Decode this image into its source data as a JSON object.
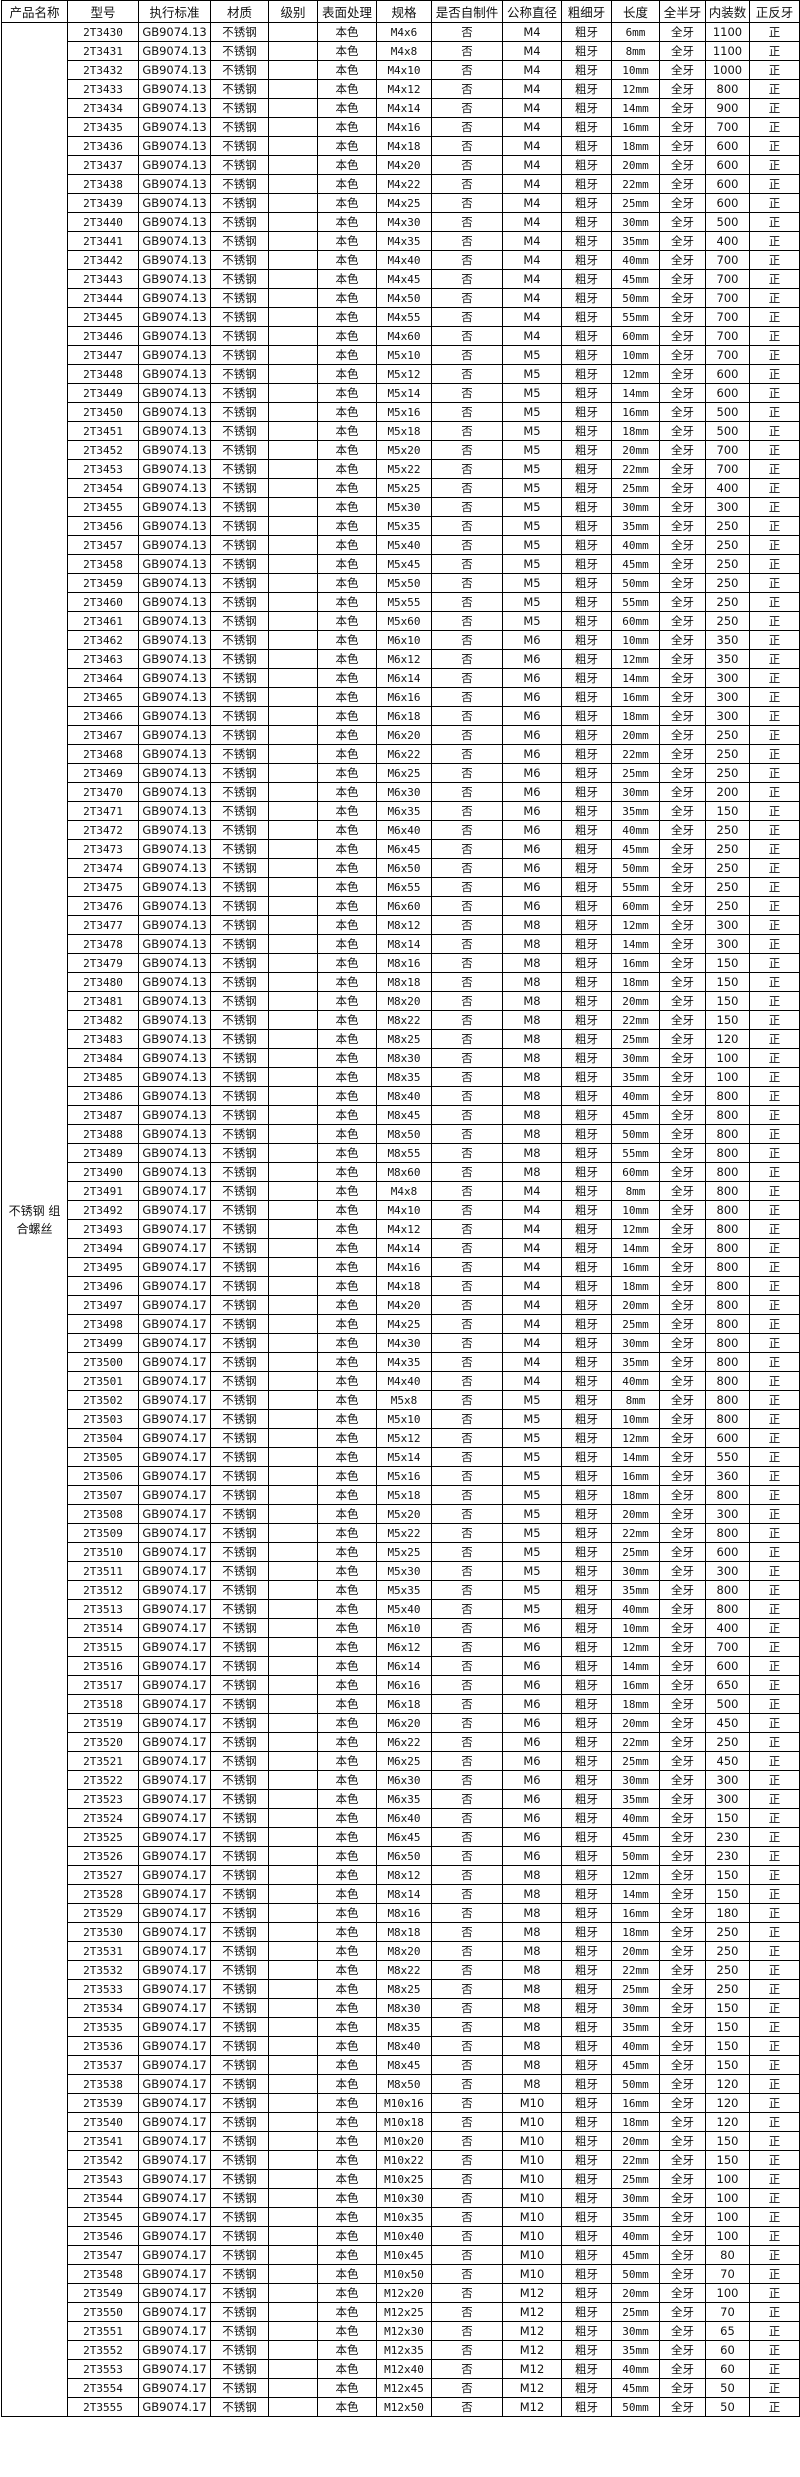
{
  "table": {
    "headers": [
      "产品名称",
      "型号",
      "执行标准",
      "材质",
      "级别",
      "表面处理",
      "规格",
      "是否自制件",
      "公称直径",
      "粗细牙",
      "长度",
      "全半牙",
      "内装数",
      "正反牙"
    ],
    "product_name": "不锈钢 组合螺丝",
    "defaults": {
      "material": "不锈钢",
      "grade": "",
      "surface": "本色",
      "self_made": "否",
      "thread": "粗牙",
      "full_half": "全牙",
      "direction": "正"
    },
    "rows": [
      [
        "2T3430",
        "GB9074.13",
        "M4x6",
        "M4",
        "6mm",
        "1100"
      ],
      [
        "2T3431",
        "GB9074.13",
        "M4x8",
        "M4",
        "8mm",
        "1100"
      ],
      [
        "2T3432",
        "GB9074.13",
        "M4x10",
        "M4",
        "10mm",
        "1000"
      ],
      [
        "2T3433",
        "GB9074.13",
        "M4x12",
        "M4",
        "12mm",
        "800"
      ],
      [
        "2T3434",
        "GB9074.13",
        "M4x14",
        "M4",
        "14mm",
        "900"
      ],
      [
        "2T3435",
        "GB9074.13",
        "M4x16",
        "M4",
        "16mm",
        "700"
      ],
      [
        "2T3436",
        "GB9074.13",
        "M4x18",
        "M4",
        "18mm",
        "600"
      ],
      [
        "2T3437",
        "GB9074.13",
        "M4x20",
        "M4",
        "20mm",
        "600"
      ],
      [
        "2T3438",
        "GB9074.13",
        "M4x22",
        "M4",
        "22mm",
        "600"
      ],
      [
        "2T3439",
        "GB9074.13",
        "M4x25",
        "M4",
        "25mm",
        "600"
      ],
      [
        "2T3440",
        "GB9074.13",
        "M4x30",
        "M4",
        "30mm",
        "500"
      ],
      [
        "2T3441",
        "GB9074.13",
        "M4x35",
        "M4",
        "35mm",
        "400"
      ],
      [
        "2T3442",
        "GB9074.13",
        "M4x40",
        "M4",
        "40mm",
        "700"
      ],
      [
        "2T3443",
        "GB9074.13",
        "M4x45",
        "M4",
        "45mm",
        "700"
      ],
      [
        "2T3444",
        "GB9074.13",
        "M4x50",
        "M4",
        "50mm",
        "700"
      ],
      [
        "2T3445",
        "GB9074.13",
        "M4x55",
        "M4",
        "55mm",
        "700"
      ],
      [
        "2T3446",
        "GB9074.13",
        "M4x60",
        "M4",
        "60mm",
        "700"
      ],
      [
        "2T3447",
        "GB9074.13",
        "M5x10",
        "M5",
        "10mm",
        "700"
      ],
      [
        "2T3448",
        "GB9074.13",
        "M5x12",
        "M5",
        "12mm",
        "600"
      ],
      [
        "2T3449",
        "GB9074.13",
        "M5x14",
        "M5",
        "14mm",
        "600"
      ],
      [
        "2T3450",
        "GB9074.13",
        "M5x16",
        "M5",
        "16mm",
        "500"
      ],
      [
        "2T3451",
        "GB9074.13",
        "M5x18",
        "M5",
        "18mm",
        "500"
      ],
      [
        "2T3452",
        "GB9074.13",
        "M5x20",
        "M5",
        "20mm",
        "700"
      ],
      [
        "2T3453",
        "GB9074.13",
        "M5x22",
        "M5",
        "22mm",
        "700"
      ],
      [
        "2T3454",
        "GB9074.13",
        "M5x25",
        "M5",
        "25mm",
        "400"
      ],
      [
        "2T3455",
        "GB9074.13",
        "M5x30",
        "M5",
        "30mm",
        "300"
      ],
      [
        "2T3456",
        "GB9074.13",
        "M5x35",
        "M5",
        "35mm",
        "250"
      ],
      [
        "2T3457",
        "GB9074.13",
        "M5x40",
        "M5",
        "40mm",
        "250"
      ],
      [
        "2T3458",
        "GB9074.13",
        "M5x45",
        "M5",
        "45mm",
        "250"
      ],
      [
        "2T3459",
        "GB9074.13",
        "M5x50",
        "M5",
        "50mm",
        "250"
      ],
      [
        "2T3460",
        "GB9074.13",
        "M5x55",
        "M5",
        "55mm",
        "250"
      ],
      [
        "2T3461",
        "GB9074.13",
        "M5x60",
        "M5",
        "60mm",
        "250"
      ],
      [
        "2T3462",
        "GB9074.13",
        "M6x10",
        "M6",
        "10mm",
        "350"
      ],
      [
        "2T3463",
        "GB9074.13",
        "M6x12",
        "M6",
        "12mm",
        "350"
      ],
      [
        "2T3464",
        "GB9074.13",
        "M6x14",
        "M6",
        "14mm",
        "300"
      ],
      [
        "2T3465",
        "GB9074.13",
        "M6x16",
        "M6",
        "16mm",
        "300"
      ],
      [
        "2T3466",
        "GB9074.13",
        "M6x18",
        "M6",
        "18mm",
        "300"
      ],
      [
        "2T3467",
        "GB9074.13",
        "M6x20",
        "M6",
        "20mm",
        "250"
      ],
      [
        "2T3468",
        "GB9074.13",
        "M6x22",
        "M6",
        "22mm",
        "250"
      ],
      [
        "2T3469",
        "GB9074.13",
        "M6x25",
        "M6",
        "25mm",
        "250"
      ],
      [
        "2T3470",
        "GB9074.13",
        "M6x30",
        "M6",
        "30mm",
        "200"
      ],
      [
        "2T3471",
        "GB9074.13",
        "M6x35",
        "M6",
        "35mm",
        "150"
      ],
      [
        "2T3472",
        "GB9074.13",
        "M6x40",
        "M6",
        "40mm",
        "250"
      ],
      [
        "2T3473",
        "GB9074.13",
        "M6x45",
        "M6",
        "45mm",
        "250"
      ],
      [
        "2T3474",
        "GB9074.13",
        "M6x50",
        "M6",
        "50mm",
        "250"
      ],
      [
        "2T3475",
        "GB9074.13",
        "M6x55",
        "M6",
        "55mm",
        "250"
      ],
      [
        "2T3476",
        "GB9074.13",
        "M6x60",
        "M6",
        "60mm",
        "250"
      ],
      [
        "2T3477",
        "GB9074.13",
        "M8x12",
        "M8",
        "12mm",
        "300"
      ],
      [
        "2T3478",
        "GB9074.13",
        "M8x14",
        "M8",
        "14mm",
        "300"
      ],
      [
        "2T3479",
        "GB9074.13",
        "M8x16",
        "M8",
        "16mm",
        "150"
      ],
      [
        "2T3480",
        "GB9074.13",
        "M8x18",
        "M8",
        "18mm",
        "150"
      ],
      [
        "2T3481",
        "GB9074.13",
        "M8x20",
        "M8",
        "20mm",
        "150"
      ],
      [
        "2T3482",
        "GB9074.13",
        "M8x22",
        "M8",
        "22mm",
        "150"
      ],
      [
        "2T3483",
        "GB9074.13",
        "M8x25",
        "M8",
        "25mm",
        "120"
      ],
      [
        "2T3484",
        "GB9074.13",
        "M8x30",
        "M8",
        "30mm",
        "100"
      ],
      [
        "2T3485",
        "GB9074.13",
        "M8x35",
        "M8",
        "35mm",
        "100"
      ],
      [
        "2T3486",
        "GB9074.13",
        "M8x40",
        "M8",
        "40mm",
        "800"
      ],
      [
        "2T3487",
        "GB9074.13",
        "M8x45",
        "M8",
        "45mm",
        "800"
      ],
      [
        "2T3488",
        "GB9074.13",
        "M8x50",
        "M8",
        "50mm",
        "800"
      ],
      [
        "2T3489",
        "GB9074.13",
        "M8x55",
        "M8",
        "55mm",
        "800"
      ],
      [
        "2T3490",
        "GB9074.13",
        "M8x60",
        "M8",
        "60mm",
        "800"
      ],
      [
        "2T3491",
        "GB9074.17",
        "M4x8",
        "M4",
        "8mm",
        "800"
      ],
      [
        "2T3492",
        "GB9074.17",
        "M4x10",
        "M4",
        "10mm",
        "800"
      ],
      [
        "2T3493",
        "GB9074.17",
        "M4x12",
        "M4",
        "12mm",
        "800"
      ],
      [
        "2T3494",
        "GB9074.17",
        "M4x14",
        "M4",
        "14mm",
        "800"
      ],
      [
        "2T3495",
        "GB9074.17",
        "M4x16",
        "M4",
        "16mm",
        "800"
      ],
      [
        "2T3496",
        "GB9074.17",
        "M4x18",
        "M4",
        "18mm",
        "800"
      ],
      [
        "2T3497",
        "GB9074.17",
        "M4x20",
        "M4",
        "20mm",
        "800"
      ],
      [
        "2T3498",
        "GB9074.17",
        "M4x25",
        "M4",
        "25mm",
        "800"
      ],
      [
        "2T3499",
        "GB9074.17",
        "M4x30",
        "M4",
        "30mm",
        "800"
      ],
      [
        "2T3500",
        "GB9074.17",
        "M4x35",
        "M4",
        "35mm",
        "800"
      ],
      [
        "2T3501",
        "GB9074.17",
        "M4x40",
        "M4",
        "40mm",
        "800"
      ],
      [
        "2T3502",
        "GB9074.17",
        "M5x8",
        "M5",
        "8mm",
        "800"
      ],
      [
        "2T3503",
        "GB9074.17",
        "M5x10",
        "M5",
        "10mm",
        "800"
      ],
      [
        "2T3504",
        "GB9074.17",
        "M5x12",
        "M5",
        "12mm",
        "600"
      ],
      [
        "2T3505",
        "GB9074.17",
        "M5x14",
        "M5",
        "14mm",
        "550"
      ],
      [
        "2T3506",
        "GB9074.17",
        "M5x16",
        "M5",
        "16mm",
        "360"
      ],
      [
        "2T3507",
        "GB9074.17",
        "M5x18",
        "M5",
        "18mm",
        "800"
      ],
      [
        "2T3508",
        "GB9074.17",
        "M5x20",
        "M5",
        "20mm",
        "300"
      ],
      [
        "2T3509",
        "GB9074.17",
        "M5x22",
        "M5",
        "22mm",
        "800"
      ],
      [
        "2T3510",
        "GB9074.17",
        "M5x25",
        "M5",
        "25mm",
        "600"
      ],
      [
        "2T3511",
        "GB9074.17",
        "M5x30",
        "M5",
        "30mm",
        "300"
      ],
      [
        "2T3512",
        "GB9074.17",
        "M5x35",
        "M5",
        "35mm",
        "800"
      ],
      [
        "2T3513",
        "GB9074.17",
        "M5x40",
        "M5",
        "40mm",
        "800"
      ],
      [
        "2T3514",
        "GB9074.17",
        "M6x10",
        "M6",
        "10mm",
        "400"
      ],
      [
        "2T3515",
        "GB9074.17",
        "M6x12",
        "M6",
        "12mm",
        "700"
      ],
      [
        "2T3516",
        "GB9074.17",
        "M6x14",
        "M6",
        "14mm",
        "600"
      ],
      [
        "2T3517",
        "GB9074.17",
        "M6x16",
        "M6",
        "16mm",
        "650"
      ],
      [
        "2T3518",
        "GB9074.17",
        "M6x18",
        "M6",
        "18mm",
        "500"
      ],
      [
        "2T3519",
        "GB9074.17",
        "M6x20",
        "M6",
        "20mm",
        "450"
      ],
      [
        "2T3520",
        "GB9074.17",
        "M6x22",
        "M6",
        "22mm",
        "250"
      ],
      [
        "2T3521",
        "GB9074.17",
        "M6x25",
        "M6",
        "25mm",
        "450"
      ],
      [
        "2T3522",
        "GB9074.17",
        "M6x30",
        "M6",
        "30mm",
        "300"
      ],
      [
        "2T3523",
        "GB9074.17",
        "M6x35",
        "M6",
        "35mm",
        "300"
      ],
      [
        "2T3524",
        "GB9074.17",
        "M6x40",
        "M6",
        "40mm",
        "150"
      ],
      [
        "2T3525",
        "GB9074.17",
        "M6x45",
        "M6",
        "45mm",
        "230"
      ],
      [
        "2T3526",
        "GB9074.17",
        "M6x50",
        "M6",
        "50mm",
        "230"
      ],
      [
        "2T3527",
        "GB9074.17",
        "M8x12",
        "M8",
        "12mm",
        "150"
      ],
      [
        "2T3528",
        "GB9074.17",
        "M8x14",
        "M8",
        "14mm",
        "150"
      ],
      [
        "2T3529",
        "GB9074.17",
        "M8x16",
        "M8",
        "16mm",
        "180"
      ],
      [
        "2T3530",
        "GB9074.17",
        "M8x18",
        "M8",
        "18mm",
        "250"
      ],
      [
        "2T3531",
        "GB9074.17",
        "M8x20",
        "M8",
        "20mm",
        "250"
      ],
      [
        "2T3532",
        "GB9074.17",
        "M8x22",
        "M8",
        "22mm",
        "250"
      ],
      [
        "2T3533",
        "GB9074.17",
        "M8x25",
        "M8",
        "25mm",
        "250"
      ],
      [
        "2T3534",
        "GB9074.17",
        "M8x30",
        "M8",
        "30mm",
        "150"
      ],
      [
        "2T3535",
        "GB9074.17",
        "M8x35",
        "M8",
        "35mm",
        "150"
      ],
      [
        "2T3536",
        "GB9074.17",
        "M8x40",
        "M8",
        "40mm",
        "150"
      ],
      [
        "2T3537",
        "GB9074.17",
        "M8x45",
        "M8",
        "45mm",
        "150"
      ],
      [
        "2T3538",
        "GB9074.17",
        "M8x50",
        "M8",
        "50mm",
        "120"
      ],
      [
        "2T3539",
        "GB9074.17",
        "M10x16",
        "M10",
        "16mm",
        "120"
      ],
      [
        "2T3540",
        "GB9074.17",
        "M10x18",
        "M10",
        "18mm",
        "120"
      ],
      [
        "2T3541",
        "GB9074.17",
        "M10x20",
        "M10",
        "20mm",
        "150"
      ],
      [
        "2T3542",
        "GB9074.17",
        "M10x22",
        "M10",
        "22mm",
        "150"
      ],
      [
        "2T3543",
        "GB9074.17",
        "M10x25",
        "M10",
        "25mm",
        "100"
      ],
      [
        "2T3544",
        "GB9074.17",
        "M10x30",
        "M10",
        "30mm",
        "100"
      ],
      [
        "2T3545",
        "GB9074.17",
        "M10x35",
        "M10",
        "35mm",
        "100"
      ],
      [
        "2T3546",
        "GB9074.17",
        "M10x40",
        "M10",
        "40mm",
        "100"
      ],
      [
        "2T3547",
        "GB9074.17",
        "M10x45",
        "M10",
        "45mm",
        "80"
      ],
      [
        "2T3548",
        "GB9074.17",
        "M10x50",
        "M10",
        "50mm",
        "70"
      ],
      [
        "2T3549",
        "GB9074.17",
        "M12x20",
        "M12",
        "20mm",
        "100"
      ],
      [
        "2T3550",
        "GB9074.17",
        "M12x25",
        "M12",
        "25mm",
        "70"
      ],
      [
        "2T3551",
        "GB9074.17",
        "M12x30",
        "M12",
        "30mm",
        "65"
      ],
      [
        "2T3552",
        "GB9074.17",
        "M12x35",
        "M12",
        "35mm",
        "60"
      ],
      [
        "2T3553",
        "GB9074.17",
        "M12x40",
        "M12",
        "40mm",
        "60"
      ],
      [
        "2T3554",
        "GB9074.17",
        "M12x45",
        "M12",
        "45mm",
        "50"
      ],
      [
        "2T3555",
        "GB9074.17",
        "M12x50",
        "M12",
        "50mm",
        "50"
      ]
    ]
  }
}
